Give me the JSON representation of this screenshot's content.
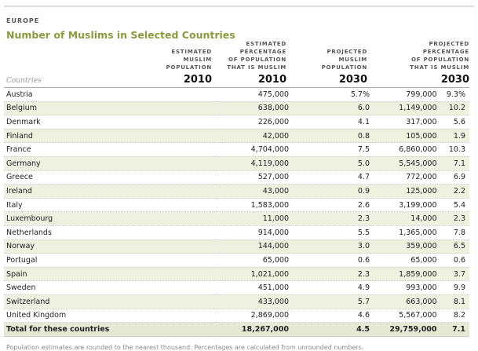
{
  "chart_data": {
    "type": "table",
    "region": "EUROPE",
    "title": "Number of Muslims in Selected Countries",
    "row_header": "Countries",
    "columns": [
      {
        "label": "ESTIMATED\nMUSLIM\nPOPULATION",
        "year": "2010"
      },
      {
        "label": "ESTIMATED\nPERCENTAGE\nOF POPULATION\nTHAT IS MUSLIM",
        "year": "2010"
      },
      {
        "label": "PROJECTED\nMUSLIM\nPOPULATION",
        "year": "2030"
      },
      {
        "label": "PROJECTED\nPERCENTAGE\nOF POPULATION\nTHAT IS MUSLIM",
        "year": "2030"
      }
    ],
    "rows": [
      [
        "Austria",
        "475,000",
        "5.7%",
        "799,000",
        "9.3%"
      ],
      [
        "Belgium",
        "638,000",
        "6.0",
        "1,149,000",
        "10.2"
      ],
      [
        "Denmark",
        "226,000",
        "4.1",
        "317,000",
        "5.6"
      ],
      [
        "Finland",
        "42,000",
        "0.8",
        "105,000",
        "1.9"
      ],
      [
        "France",
        "4,704,000",
        "7.5",
        "6,860,000",
        "10.3"
      ],
      [
        "Germany",
        "4,119,000",
        "5.0",
        "5,545,000",
        "7.1"
      ],
      [
        "Greece",
        "527,000",
        "4.7",
        "772,000",
        "6.9"
      ],
      [
        "Ireland",
        "43,000",
        "0.9",
        "125,000",
        "2.2"
      ],
      [
        "Italy",
        "1,583,000",
        "2.6",
        "3,199,000",
        "5.4"
      ],
      [
        "Luxembourg",
        "11,000",
        "2.3",
        "14,000",
        "2.3"
      ],
      [
        "Netherlands",
        "914,000",
        "5.5",
        "1,365,000",
        "7.8"
      ],
      [
        "Norway",
        "144,000",
        "3.0",
        "359,000",
        "6.5"
      ],
      [
        "Portugal",
        "65,000",
        "0.6",
        "65,000",
        "0.6"
      ],
      [
        "Spain",
        "1,021,000",
        "2.3",
        "1,859,000",
        "3.7"
      ],
      [
        "Sweden",
        "451,000",
        "4.9",
        "993,000",
        "9.9"
      ],
      [
        "Switzerland",
        "433,000",
        "5.7",
        "663,000",
        "8.1"
      ],
      [
        "United Kingdom",
        "2,869,000",
        "4.6",
        "5,567,000",
        "8.2"
      ]
    ],
    "total": [
      "Total for these countries",
      "18,267,000",
      "4.5",
      "29,759,000",
      "7.1"
    ],
    "note": "Population estimates are rounded to the nearest thousand. Percentages are calculated from unrounded numbers."
  }
}
